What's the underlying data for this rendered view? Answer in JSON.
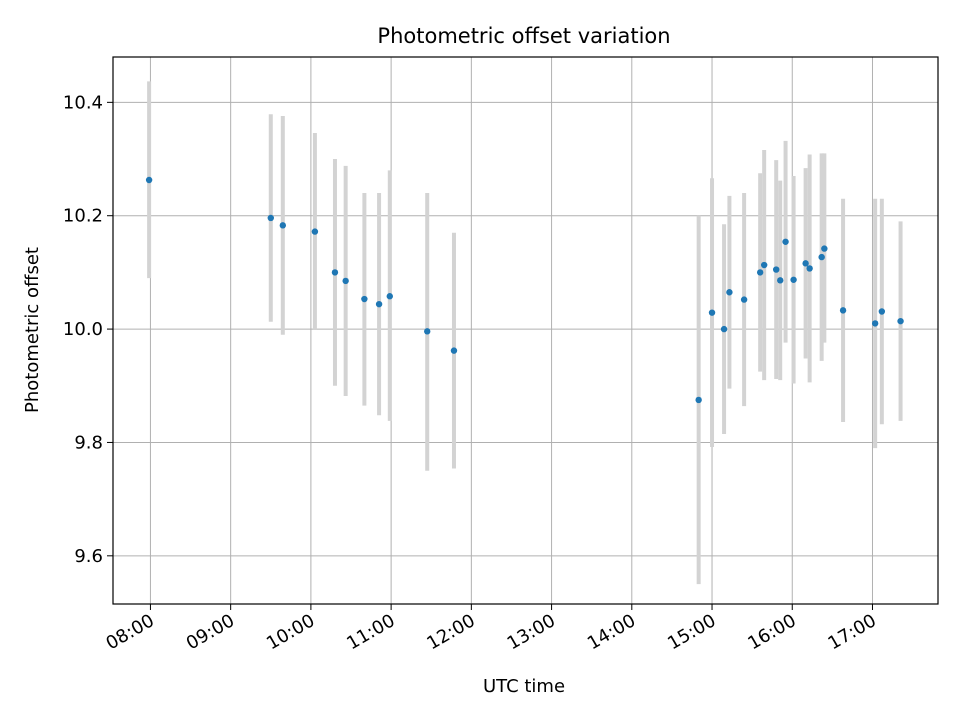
{
  "chart_data": {
    "type": "scatter",
    "title": "Photometric offset variation",
    "xlabel": "UTC time",
    "ylabel": "Photometric offset",
    "x_ticks": [
      "08:00",
      "09:00",
      "10:00",
      "11:00",
      "12:00",
      "13:00",
      "14:00",
      "15:00",
      "16:00",
      "17:00"
    ],
    "y_ticks": [
      "9.6",
      "9.8",
      "10.0",
      "10.2",
      "10.4"
    ],
    "xlim": [
      "07:32",
      "17:49"
    ],
    "ylim": [
      9.515,
      10.48
    ],
    "grid": true,
    "marker_color": "#1f77b4",
    "errorbar_color": "#d3d3d3",
    "points": [
      {
        "t": "07:59",
        "y": 10.263,
        "lo": 10.09,
        "hi": 10.437
      },
      {
        "t": "09:30",
        "y": 10.196,
        "lo": 10.013,
        "hi": 10.379
      },
      {
        "t": "09:39",
        "y": 10.183,
        "lo": 9.99,
        "hi": 10.376
      },
      {
        "t": "10:03",
        "y": 10.172,
        "lo": 10.0,
        "hi": 10.346
      },
      {
        "t": "10:18",
        "y": 10.1,
        "lo": 9.9,
        "hi": 10.3
      },
      {
        "t": "10:26",
        "y": 10.085,
        "lo": 9.882,
        "hi": 10.288
      },
      {
        "t": "10:40",
        "y": 10.053,
        "lo": 9.865,
        "hi": 10.24
      },
      {
        "t": "10:51",
        "y": 10.044,
        "lo": 9.848,
        "hi": 10.24
      },
      {
        "t": "10:59",
        "y": 10.058,
        "lo": 9.838,
        "hi": 10.28
      },
      {
        "t": "11:27",
        "y": 9.996,
        "lo": 9.75,
        "hi": 10.24
      },
      {
        "t": "11:47",
        "y": 9.962,
        "lo": 9.754,
        "hi": 10.17
      },
      {
        "t": "14:50",
        "y": 9.875,
        "lo": 9.55,
        "hi": 10.2
      },
      {
        "t": "15:00",
        "y": 10.029,
        "lo": 9.792,
        "hi": 10.266
      },
      {
        "t": "15:09",
        "y": 10.0,
        "lo": 9.815,
        "hi": 10.185
      },
      {
        "t": "15:13",
        "y": 10.065,
        "lo": 9.895,
        "hi": 10.235
      },
      {
        "t": "15:24",
        "y": 10.052,
        "lo": 9.864,
        "hi": 10.24
      },
      {
        "t": "15:36",
        "y": 10.1,
        "lo": 9.925,
        "hi": 10.275
      },
      {
        "t": "15:39",
        "y": 10.113,
        "lo": 9.91,
        "hi": 10.316
      },
      {
        "t": "15:48",
        "y": 10.105,
        "lo": 9.912,
        "hi": 10.298
      },
      {
        "t": "15:51",
        "y": 10.086,
        "lo": 9.91,
        "hi": 10.262
      },
      {
        "t": "15:55",
        "y": 10.154,
        "lo": 9.976,
        "hi": 10.332
      },
      {
        "t": "16:01",
        "y": 10.087,
        "lo": 9.904,
        "hi": 10.27
      },
      {
        "t": "16:10",
        "y": 10.116,
        "lo": 9.948,
        "hi": 10.284
      },
      {
        "t": "16:13",
        "y": 10.107,
        "lo": 9.906,
        "hi": 10.308
      },
      {
        "t": "16:22",
        "y": 10.127,
        "lo": 9.944,
        "hi": 10.31
      },
      {
        "t": "16:24",
        "y": 10.142,
        "lo": 9.976,
        "hi": 10.31
      },
      {
        "t": "16:38",
        "y": 10.033,
        "lo": 9.836,
        "hi": 10.23
      },
      {
        "t": "17:02",
        "y": 10.01,
        "lo": 9.79,
        "hi": 10.23
      },
      {
        "t": "17:07",
        "y": 10.031,
        "lo": 9.832,
        "hi": 10.23
      },
      {
        "t": "17:21",
        "y": 10.014,
        "lo": 9.838,
        "hi": 10.19
      }
    ]
  }
}
